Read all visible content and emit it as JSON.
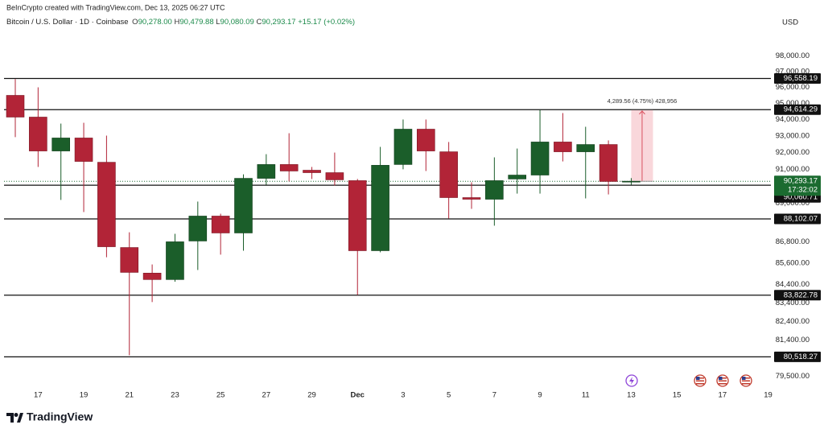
{
  "chart_data": {
    "type": "candlestick",
    "attribution": "BeInCrypto created with TradingView.com, Dec 13, 2025 06:27 UTC",
    "symbol": "Bitcoin / U.S. Dollar · 1D · Coinbase",
    "ohlc_legend": [
      {
        "key": "O",
        "value": "90,278.00"
      },
      {
        "key": "H",
        "value": "90,479.88"
      },
      {
        "key": "L",
        "value": "90,080.09"
      },
      {
        "key": "C",
        "value": "90,293.17"
      }
    ],
    "change": "+15.17 (+0.02%)",
    "currency": "USD",
    "brand": "TradingView",
    "categories": [
      null,
      "17",
      null,
      "19",
      null,
      "21",
      null,
      "23",
      null,
      "25",
      null,
      "27",
      null,
      "29",
      null,
      "Dec",
      null,
      "3",
      null,
      "5",
      null,
      "7",
      null,
      "9",
      null,
      "11",
      null,
      "13",
      null,
      "15",
      null,
      "17",
      null,
      "19"
    ],
    "open": [
      95499,
      94155,
      92096,
      92880,
      91420,
      86472,
      85040,
      84683,
      86840,
      88265,
      87297,
      90466,
      91286,
      90946,
      90802,
      90330,
      86293,
      91286,
      93416,
      92048,
      89336,
      89240,
      90426,
      90659,
      92637,
      92048,
      92485,
      90278,
      null,
      null,
      null,
      null,
      null,
      null
    ],
    "high": [
      96520,
      96002,
      93757,
      93806,
      93025,
      87337,
      85522,
      87250,
      89104,
      88400,
      90701,
      91904,
      93169,
      91141,
      92000,
      90426,
      92341,
      94008,
      94008,
      92637,
      90234,
      91713,
      92242,
      94600,
      94403,
      93562,
      92734,
      90479.88,
      null,
      null,
      null,
      null,
      null,
      null
    ],
    "low": [
      92930,
      91141,
      89200,
      88497,
      85927,
      80600,
      83447,
      84560,
      85213,
      86071,
      86293,
      90089,
      90281,
      90426,
      90040,
      83833,
      86200,
      91000,
      90899,
      88129,
      88679,
      87713,
      89569,
      89569,
      91470,
      89290,
      89520,
      90080.09,
      null,
      null,
      null,
      null,
      null,
      null
    ],
    "close": [
      94155,
      92096,
      92880,
      91470,
      86517,
      85080,
      84683,
      86796,
      88265,
      87297,
      90466,
      91286,
      90899,
      90802,
      90378,
      86293,
      91240,
      93416,
      92096,
      89336,
      89240,
      90330,
      90659,
      92637,
      92048,
      92485,
      90281,
      90293.17,
      null,
      null,
      null,
      null,
      null,
      null
    ],
    "up_color": "#1b5e2a",
    "down_color": "#b22437",
    "log": true,
    "ylim": [
      78900,
      101100
    ],
    "yticks": [
      {
        "value": 98000,
        "label": "98,000.00"
      },
      {
        "value": 97000,
        "label": "97,000.00"
      },
      {
        "value": 96000,
        "label": "96,000.00"
      },
      {
        "value": 95000,
        "label": "95,000.00"
      },
      {
        "value": 94000,
        "label": "94,000.00"
      },
      {
        "value": 93000,
        "label": "93,000.00"
      },
      {
        "value": 92000,
        "label": "92,000.00"
      },
      {
        "value": 91000,
        "label": "91,000.00"
      },
      {
        "value": 89000,
        "label": "89,000.00"
      },
      {
        "value": 86800,
        "label": "86,800.00"
      },
      {
        "value": 85600,
        "label": "85,600.00"
      },
      {
        "value": 84400,
        "label": "84,400.00"
      },
      {
        "value": 83400,
        "label": "83,400.00"
      },
      {
        "value": 82400,
        "label": "82,400.00"
      },
      {
        "value": 81400,
        "label": "81,400.00"
      },
      {
        "value": 79500,
        "label": "79,500.00"
      }
    ],
    "levels": [
      {
        "value": 96558.19,
        "label": "96,558.19"
      },
      {
        "value": 94614.29,
        "label": "94,614.29"
      },
      {
        "value": 90060.71,
        "label": "90,060.71"
      },
      {
        "value": 88102.07,
        "label": "88,102.07"
      },
      {
        "value": 83822.78,
        "label": "83,822.78"
      },
      {
        "value": 80518.27,
        "label": "80,518.27"
      }
    ],
    "last_price": {
      "value": 90293.17,
      "label": "90,293.17",
      "countdown": "17:32:02",
      "color": "#1b6b30"
    },
    "measure": {
      "from": 90293.17,
      "to": 94582.73,
      "label": "4,289.56 (4.75%) 428,956",
      "color": "#f7c9cf",
      "line_color": "#d9515f"
    }
  }
}
